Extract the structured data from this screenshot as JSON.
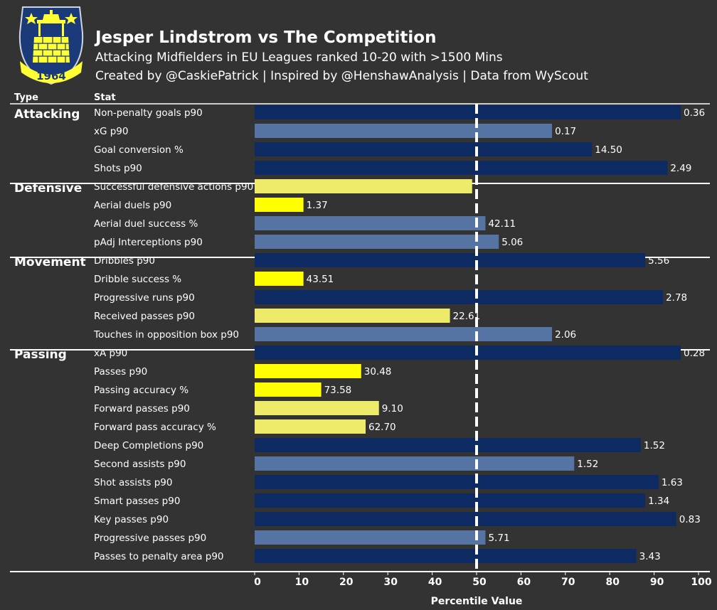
{
  "header": {
    "title": "Jesper Lindstrom vs The Competition",
    "subtitle": "Attacking Midfielders in EU Leagues ranked 10-20 with >1500 Mins",
    "credits": "Created by @CaskiePatrick | Inspired by @HenshawAnalysis | Data from WyScout"
  },
  "logo": {
    "year": "1964"
  },
  "colors": {
    "background": "#333333",
    "rank_top": "#0d2b62",
    "rank_above_avg": "#5573a3",
    "rank_below_avg": "#eeea6a",
    "rank_bottom": "#ffff00",
    "reference_line": "#ffffff"
  },
  "chart_data": {
    "type": "bar",
    "orientation": "horizontal",
    "column_headers": {
      "type": "Type",
      "stat": "Stat"
    },
    "xlabel": "Percentile Value",
    "xlim": [
      0,
      100
    ],
    "xticks": [
      0,
      10,
      20,
      30,
      40,
      50,
      60,
      70,
      80,
      90,
      100
    ],
    "reference_line": 50,
    "groups": [
      {
        "name": "Attacking",
        "items": [
          {
            "stat": "Non-penalty goals p90",
            "percentile": 96,
            "value": "0.36",
            "color": "#0d2b62"
          },
          {
            "stat": "xG p90",
            "percentile": 67,
            "value": "0.17",
            "color": "#5573a3"
          },
          {
            "stat": "Goal conversion %",
            "percentile": 76,
            "value": "14.50",
            "color": "#0d2b62"
          },
          {
            "stat": "Shots p90",
            "percentile": 93,
            "value": "2.49",
            "color": "#0d2b62"
          }
        ]
      },
      {
        "name": "Defensive",
        "items": [
          {
            "stat": "Successful defensive actions p90",
            "percentile": 49,
            "value": "",
            "color": "#eeea6a"
          },
          {
            "stat": "Aerial duels p90",
            "percentile": 11,
            "value": "1.37",
            "color": "#ffff00"
          },
          {
            "stat": "Aerial duel success %",
            "percentile": 52,
            "value": "42.11",
            "color": "#5573a3"
          },
          {
            "stat": "pAdj Interceptions p90",
            "percentile": 55,
            "value": "5.06",
            "color": "#5573a3"
          }
        ]
      },
      {
        "name": "Movement",
        "items": [
          {
            "stat": "Dribbles p90",
            "percentile": 88,
            "value": "5.56",
            "color": "#0d2b62"
          },
          {
            "stat": "Dribble success %",
            "percentile": 11,
            "value": "43.51",
            "color": "#ffff00"
          },
          {
            "stat": "Progressive runs p90",
            "percentile": 92,
            "value": "2.78",
            "color": "#0d2b62"
          },
          {
            "stat": "Received passes p90",
            "percentile": 44,
            "value": "22.61",
            "color": "#eeea6a"
          },
          {
            "stat": "Touches in opposition box p90",
            "percentile": 67,
            "value": "2.06",
            "color": "#5573a3"
          }
        ]
      },
      {
        "name": "Passing",
        "items": [
          {
            "stat": "xA p90",
            "percentile": 96,
            "value": "0.28",
            "color": "#0d2b62"
          },
          {
            "stat": "Passes p90",
            "percentile": 24,
            "value": "30.48",
            "color": "#ffff00"
          },
          {
            "stat": "Passing accuracy %",
            "percentile": 15,
            "value": "73.58",
            "color": "#ffff00"
          },
          {
            "stat": "Forward passes p90",
            "percentile": 28,
            "value": "9.10",
            "color": "#eeea6a"
          },
          {
            "stat": "Forward pass accuracy %",
            "percentile": 25,
            "value": "62.70",
            "color": "#eeea6a"
          },
          {
            "stat": "Deep Completions p90",
            "percentile": 87,
            "value": "1.52",
            "color": "#0d2b62"
          },
          {
            "stat": "Second assists p90",
            "percentile": 72,
            "value": "1.52",
            "color": "#5573a3"
          },
          {
            "stat": "Shot assists p90",
            "percentile": 91,
            "value": "1.63",
            "color": "#0d2b62"
          },
          {
            "stat": "Smart passes p90",
            "percentile": 88,
            "value": "1.34",
            "color": "#0d2b62"
          },
          {
            "stat": "Key passes p90",
            "percentile": 95,
            "value": "0.83",
            "color": "#0d2b62"
          },
          {
            "stat": "Progressive passes p90",
            "percentile": 52,
            "value": "5.71",
            "color": "#5573a3"
          },
          {
            "stat": "Passes to penalty area p90",
            "percentile": 86,
            "value": "3.43",
            "color": "#0d2b62"
          }
        ]
      }
    ]
  }
}
